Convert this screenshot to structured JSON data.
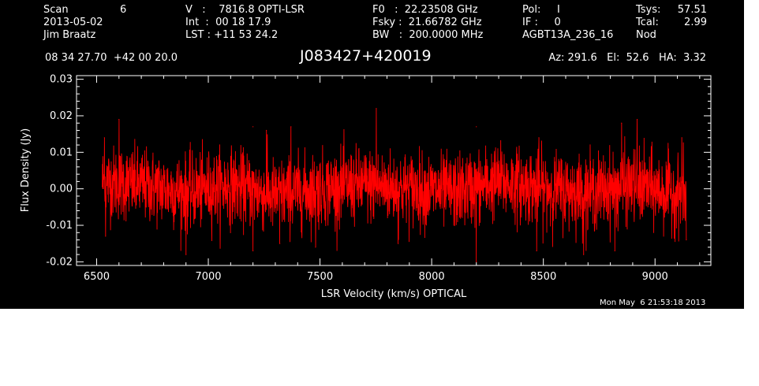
{
  "header": {
    "col1": [
      "Scan",
      "2013-05-02",
      "Jim Braatz"
    ],
    "scan_number": "6",
    "col2": [
      "V   :    7816.8 OPTI-LSR",
      "Int  :  00 18 17.9",
      "LST : +11 53 24.2"
    ],
    "col3": [
      "F0   :  22.23508 GHz",
      "Fsky :  21.66782 GHz",
      "BW   :  200.0000 MHz"
    ],
    "col4": [
      "Pol:     I",
      "IF :     0",
      "AGBT13A_236_16"
    ],
    "col5_labels": [
      "Tsys:",
      "Tcal:",
      "Nod"
    ],
    "col5_values": [
      "57.51",
      "2.99",
      ""
    ],
    "coords": "08 34 27.70  +42 00 20.0",
    "source": "J083427+420019",
    "pointing": "Az: 291.6   El:  52.6   HA:  3.32"
  },
  "timestamp": "Mon May  6 21:53:18 2013",
  "colors": {
    "background": "#000000",
    "axes": "#ffffff",
    "spectrum": "#ff0000"
  },
  "chart_data": {
    "type": "line",
    "xlabel": "LSR Velocity (km/s) OPTICAL",
    "ylabel": "Flux Density (Jy)",
    "xlim": [
      6410,
      9250
    ],
    "ylim": [
      -0.021,
      0.031
    ],
    "x_ticks": [
      6500,
      7000,
      7500,
      8000,
      8500,
      9000
    ],
    "x_tick_labels": [
      "6500",
      "7000",
      "7500",
      "8000",
      "8500",
      "9000"
    ],
    "y_ticks": [
      -0.02,
      -0.01,
      0.0,
      0.01,
      0.02,
      0.03
    ],
    "y_tick_labels": [
      "-0.02",
      "-0.01",
      "0.00",
      "0.01",
      "0.02",
      "0.03"
    ],
    "series": [
      {
        "name": "",
        "color": "#ff0000",
        "x_start": 6525,
        "x_end": 9140,
        "noise_rms_jy": 0.005,
        "baseline_jy": [
          [
            6525,
            0.002
          ],
          [
            6700,
            0.001
          ],
          [
            6900,
            -0.001
          ],
          [
            7100,
            0.001
          ],
          [
            7300,
            -0.002
          ],
          [
            7500,
            0.0
          ],
          [
            7700,
            0.001
          ],
          [
            7900,
            0.0
          ],
          [
            8100,
            -0.001
          ],
          [
            8300,
            0.002
          ],
          [
            8500,
            0.0
          ],
          [
            8700,
            -0.001
          ],
          [
            8900,
            0.001
          ],
          [
            9140,
            -0.002
          ]
        ],
        "notable_peaks": [
          [
            6535,
            0.014
          ],
          [
            6600,
            0.019
          ],
          [
            7200,
            0.017
          ],
          [
            7260,
            0.016
          ],
          [
            7370,
            0.017
          ],
          [
            7752,
            0.022
          ],
          [
            8200,
            0.017
          ],
          [
            8480,
            0.014
          ],
          [
            8850,
            0.018
          ],
          [
            8920,
            0.019
          ],
          [
            9120,
            0.014
          ]
        ],
        "notable_dips": [
          [
            6540,
            -0.013
          ],
          [
            6900,
            -0.018
          ],
          [
            7200,
            -0.017
          ],
          [
            7320,
            -0.015
          ],
          [
            7480,
            -0.016
          ],
          [
            7850,
            -0.015
          ],
          [
            8200,
            -0.02
          ],
          [
            8470,
            -0.017
          ],
          [
            8680,
            -0.018
          ],
          [
            8820,
            -0.017
          ],
          [
            9140,
            -0.014
          ]
        ]
      }
    ]
  }
}
